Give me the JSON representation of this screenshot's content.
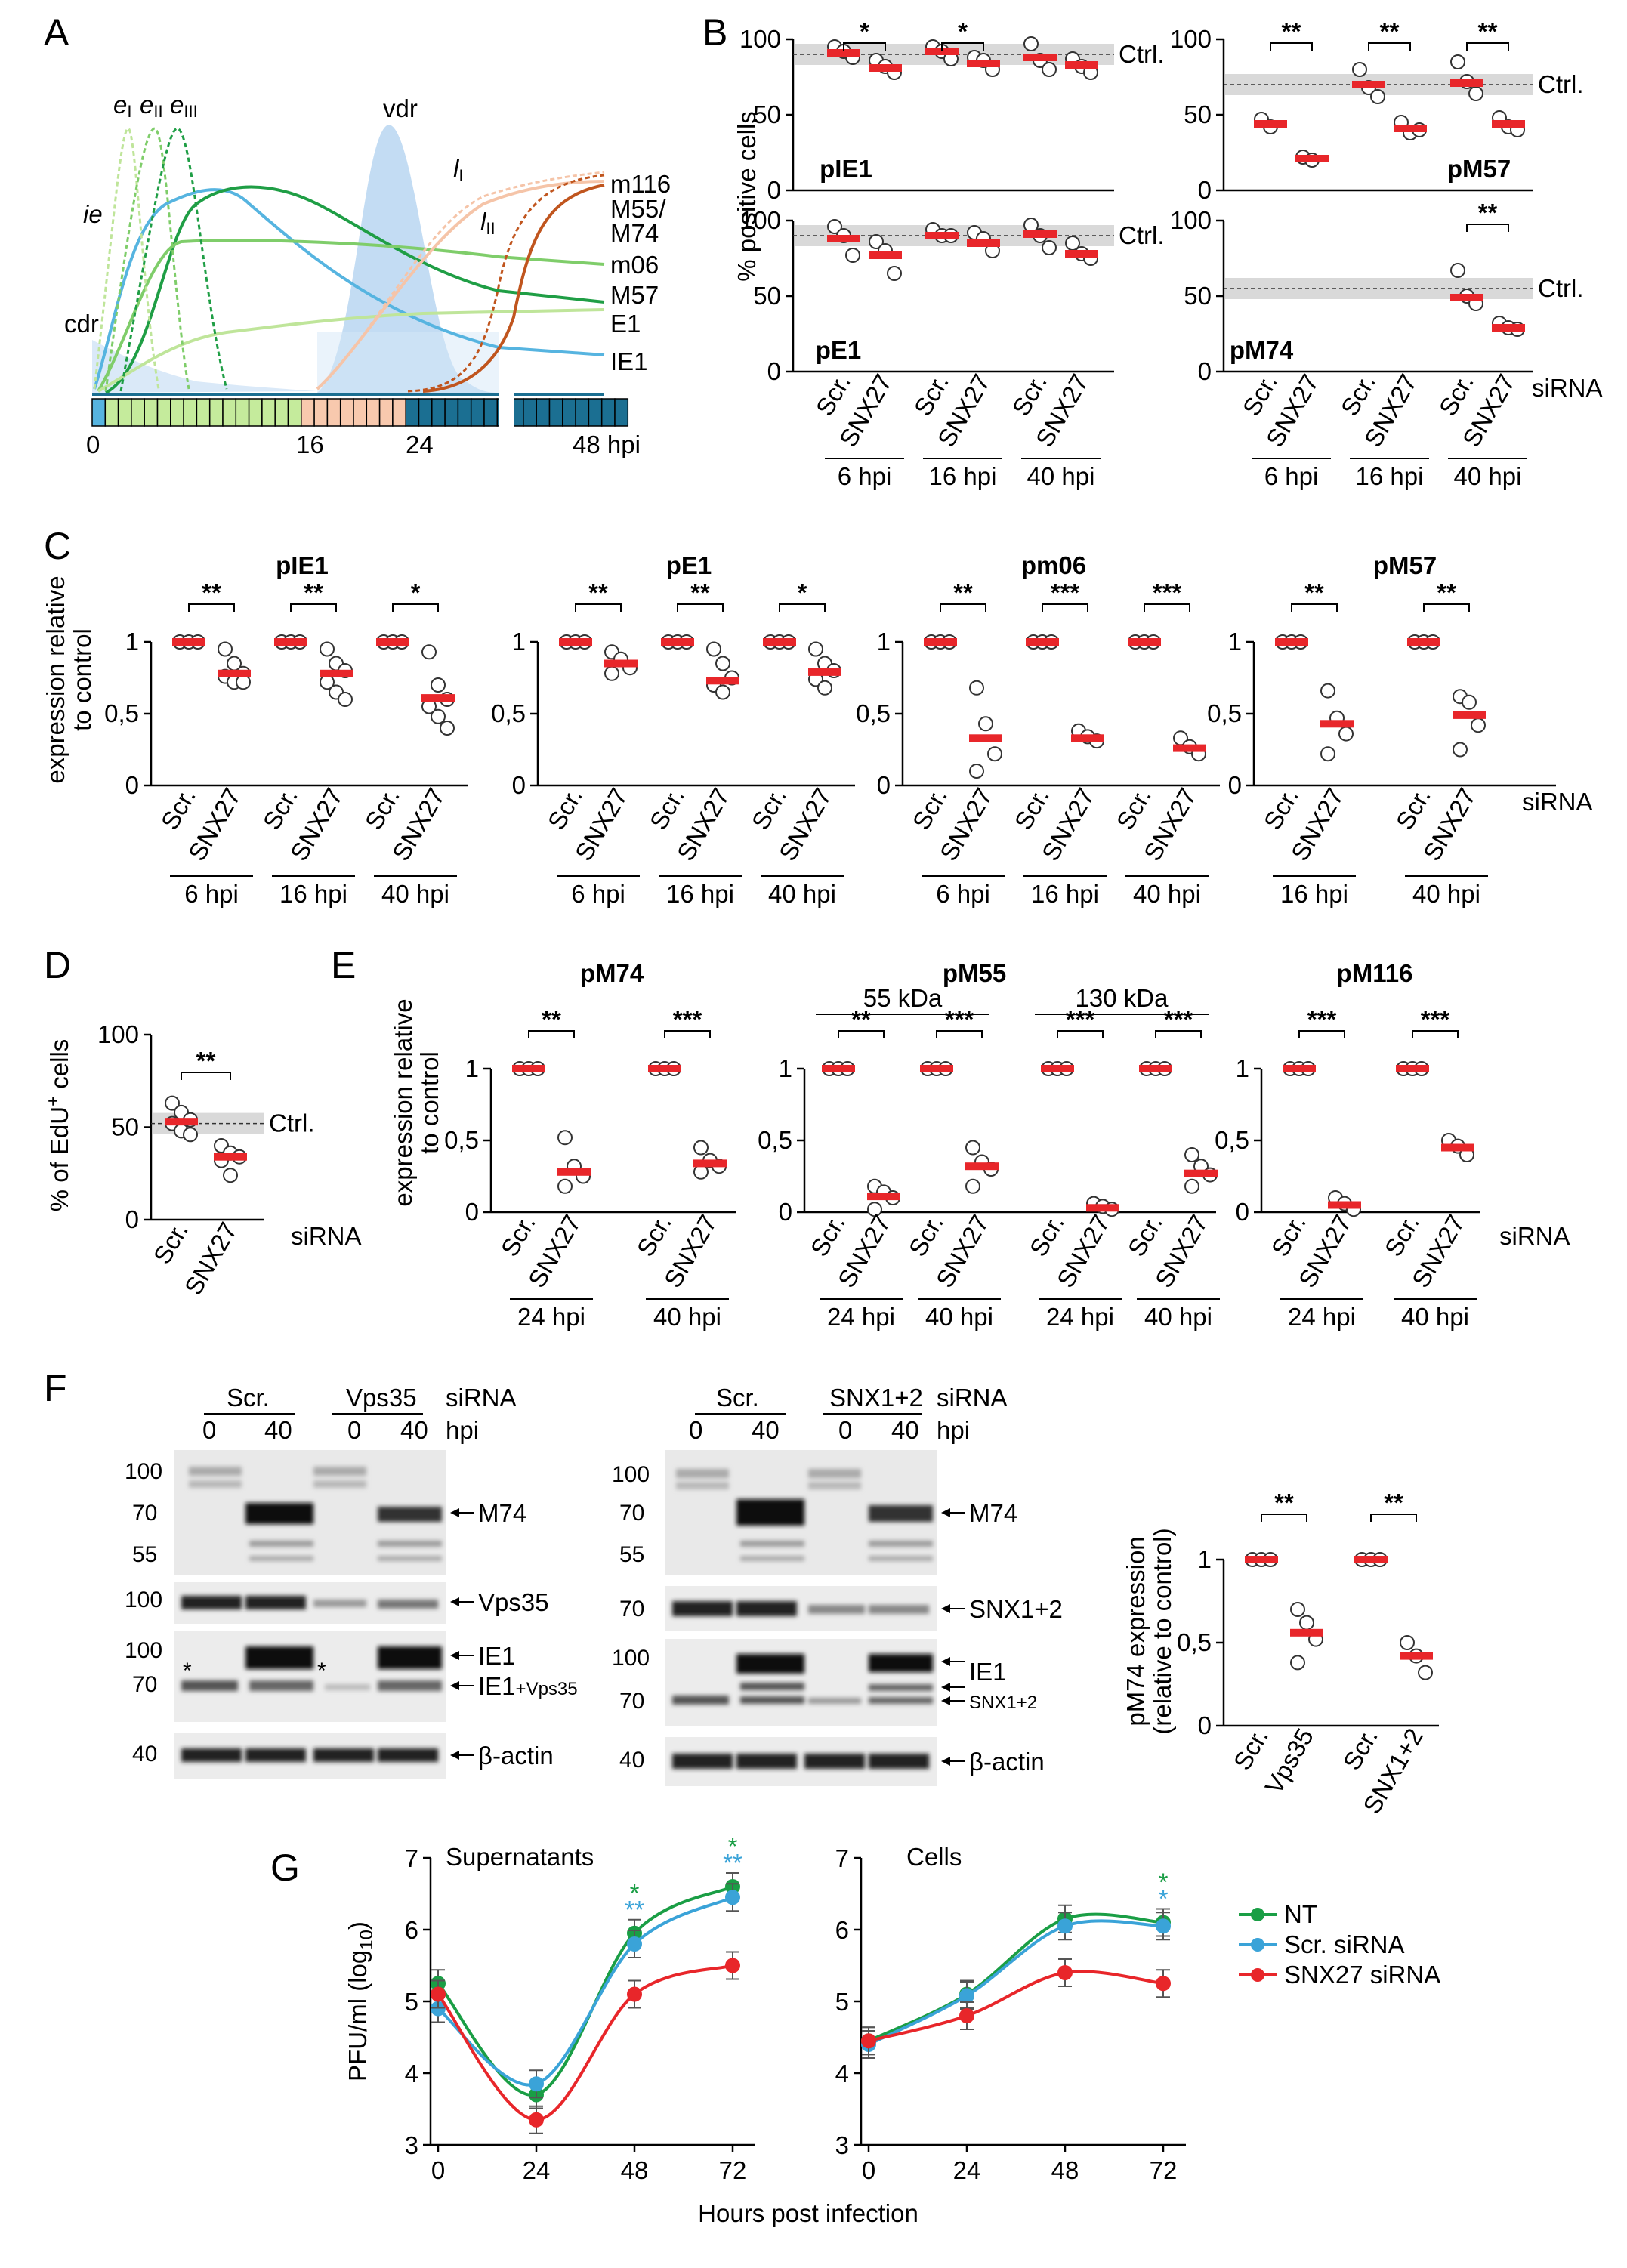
{
  "panels": {
    "A": "A",
    "B": "B",
    "C": "C",
    "D": "D",
    "E": "E",
    "F": "F",
    "G": "G"
  },
  "common": {
    "scr": "Scr.",
    "snx27": "SNX27",
    "sirna": "siRNA",
    "ctrl": "Ctrl.",
    "hpi": "hpi",
    "rel_ylabel_1": "expression relative",
    "rel_ylabel_2": "to control"
  },
  "panelA": {
    "labels": {
      "e1": "e",
      "e1s": "I",
      "e2": "e",
      "e2s": "II",
      "e3": "e",
      "e3s": "III",
      "vdr": "vdr",
      "l1": "l",
      "l1s": "I",
      "l2": "l",
      "l2s": "II",
      "ie": "ie",
      "cdr": "cdr",
      "m116": "m116",
      "m55a": "M55/",
      "m55b": "M74",
      "m06": "m06",
      "m57": "M57",
      "e1gene": "E1",
      "ie1": "IE1"
    },
    "axis": {
      "t0": "0",
      "t16": "16",
      "t24": "24",
      "t48": "48 hpi"
    },
    "colors": {
      "ie": "#56b4e0",
      "early_light": "#bfe59a",
      "early_mid": "#7fcd6a",
      "early_dark": "#1f9e45",
      "late_light": "#f5c4a8",
      "late_dark": "#c0551e",
      "shade": "#bcd8f2",
      "bar_blue": "#1b6f92",
      "bar_green": "#c5eb9c",
      "bar_peach": "#f8c9ae"
    }
  },
  "panelB": {
    "ylabel": "% positive cells",
    "ticks": [
      "0",
      "50",
      "100"
    ],
    "groups": [
      "6 hpi",
      "16 hpi",
      "40 hpi"
    ],
    "chart_data": [
      {
        "type": "scatter",
        "title": "pIE1",
        "ylim": [
          0,
          100
        ],
        "ctrl": 90,
        "groups": [
          "6 hpi",
          "16 hpi",
          "40 hpi"
        ],
        "medians": {
          "Scr.": [
            91,
            92,
            88
          ],
          "SNX27": [
            81,
            84,
            83
          ]
        },
        "points": {
          "Scr.": [
            [
              95,
              92,
              88
            ],
            [
              95,
              92,
              87
            ],
            [
              97,
              86,
              80
            ]
          ],
          "SNX27": [
            [
              86,
              82,
              78
            ],
            [
              88,
              86,
              80
            ],
            [
              87,
              82,
              78
            ]
          ]
        },
        "sig": [
          "*",
          "*",
          ""
        ]
      },
      {
        "type": "scatter",
        "title": "pM57",
        "ylim": [
          0,
          100
        ],
        "ctrl": 70,
        "groups": [
          "6 hpi",
          "16 hpi",
          "40 hpi"
        ],
        "medians": {
          "Scr.": [
            44,
            70,
            71
          ],
          "SNX27": [
            21,
            41,
            44
          ]
        },
        "points": {
          "Scr.": [
            [
              47,
              42
            ],
            [
              80,
              68,
              62
            ],
            [
              85,
              72,
              64
            ]
          ],
          "SNX27": [
            [
              22,
              20
            ],
            [
              45,
              38,
              40
            ],
            [
              48,
              42,
              40
            ]
          ]
        },
        "sig": [
          "**",
          "**",
          "**"
        ]
      },
      {
        "type": "scatter",
        "title": "pE1",
        "ylim": [
          0,
          100
        ],
        "ctrl": 90,
        "groups": [
          "6 hpi",
          "16 hpi",
          "40 hpi"
        ],
        "medians": {
          "Scr.": [
            88,
            90,
            91
          ],
          "SNX27": [
            77,
            85,
            78
          ]
        },
        "points": {
          "Scr.": [
            [
              96,
              90,
              77
            ],
            [
              94,
              90,
              90
            ],
            [
              97,
              90,
              82
            ]
          ],
          "SNX27": [
            [
              86,
              80,
              65
            ],
            [
              92,
              88,
              80
            ],
            [
              85,
              78,
              75
            ]
          ]
        },
        "sig": [
          "",
          "",
          ""
        ]
      },
      {
        "type": "scatter",
        "title": "pM74",
        "ylim": [
          0,
          100
        ],
        "ctrl": 55,
        "groups": [
          "6 hpi",
          "16 hpi",
          "40 hpi"
        ],
        "medians": {
          "Scr.": [
            null,
            null,
            49
          ],
          "SNX27": [
            null,
            null,
            29
          ]
        },
        "points": {
          "Scr.": [
            [],
            [],
            [
              67,
              50,
              45
            ]
          ],
          "SNX27": [
            [],
            [],
            [
              32,
              29,
              28
            ]
          ]
        },
        "sig": [
          "",
          "",
          "**"
        ]
      }
    ]
  },
  "panelC": {
    "ylabel_ticks": [
      "0",
      "0,5",
      "1"
    ],
    "chart_data": [
      {
        "type": "scatter",
        "title": "pIE1",
        "groups": [
          "6 hpi",
          "16 hpi",
          "40 hpi"
        ],
        "medians": {
          "Scr.": [
            1,
            1,
            1
          ],
          "SNX27": [
            0.78,
            0.78,
            0.61
          ]
        },
        "points": {
          "SNX27": [
            [
              0.95,
              0.85,
              0.78,
              0.76,
              0.72,
              0.72
            ],
            [
              0.95,
              0.85,
              0.8,
              0.72,
              0.65,
              0.6
            ],
            [
              0.93,
              0.7,
              0.6,
              0.55,
              0.48,
              0.4
            ]
          ]
        },
        "sig": [
          "**",
          "**",
          "*"
        ]
      },
      {
        "type": "scatter",
        "title": "pE1",
        "groups": [
          "6 hpi",
          "16 hpi",
          "40 hpi"
        ],
        "medians": {
          "Scr.": [
            1,
            1,
            1
          ],
          "SNX27": [
            0.85,
            0.73,
            0.79
          ]
        },
        "points": {
          "SNX27": [
            [
              0.93,
              0.88,
              0.82,
              0.78
            ],
            [
              0.95,
              0.85,
              0.75,
              0.7,
              0.65
            ],
            [
              0.95,
              0.85,
              0.8,
              0.74,
              0.68
            ]
          ]
        },
        "sig": [
          "**",
          "**",
          "*"
        ]
      },
      {
        "type": "scatter",
        "title": "pm06",
        "groups": [
          "6 hpi",
          "16 hpi",
          "40 hpi"
        ],
        "medians": {
          "Scr.": [
            1,
            1,
            1
          ],
          "SNX27": [
            0.33,
            0.33,
            0.26
          ]
        },
        "points": {
          "SNX27": [
            [
              0.68,
              0.43,
              0.22,
              0.1
            ],
            [
              0.38,
              0.34,
              0.31
            ],
            [
              0.33,
              0.27,
              0.22
            ]
          ]
        },
        "sig": [
          "**",
          "***",
          "***"
        ]
      },
      {
        "type": "scatter",
        "title": "pM57",
        "groups": [
          "16 hpi",
          "40 hpi"
        ],
        "medians": {
          "Scr.": [
            1,
            1
          ],
          "SNX27": [
            0.43,
            0.49
          ]
        },
        "points": {
          "SNX27": [
            [
              0.66,
              0.47,
              0.36,
              0.22
            ],
            [
              0.62,
              0.58,
              0.42,
              0.25
            ]
          ]
        },
        "sig": [
          "**",
          "**"
        ]
      }
    ]
  },
  "panelD": {
    "ylabel": "% of EdU",
    "ylabel_sup": "+",
    "ylabel_end": " cells",
    "ticks": [
      "0",
      "50",
      "100"
    ],
    "chart_data": {
      "type": "scatter",
      "ylim": [
        0,
        100
      ],
      "ctrl": 52,
      "medians": {
        "Scr.": 53,
        "SNX27": 34
      },
      "points": {
        "Scr.": [
          63,
          58,
          54,
          52,
          48,
          46
        ],
        "SNX27": [
          40,
          36,
          34,
          32,
          24
        ]
      },
      "sig": "**"
    }
  },
  "panelE": {
    "kda55": "55 kDa",
    "kda130": "130 kDa",
    "chart_data": [
      {
        "type": "scatter",
        "title": "pM74",
        "groups": [
          "24 hpi",
          "40 hpi"
        ],
        "medians": {
          "SNX27": [
            0.28,
            0.34
          ]
        },
        "points": {
          "SNX27": [
            [
              0.52,
              0.32,
              0.25,
              0.18
            ],
            [
              0.45,
              0.36,
              0.32,
              0.28
            ]
          ]
        },
        "sig": [
          "**",
          "***"
        ]
      },
      {
        "type": "scatter",
        "title": "pM55",
        "groups": [
          "24 hpi",
          "40 hpi",
          "24 hpi",
          "40 hpi"
        ],
        "medians": {
          "SNX27": [
            0.11,
            0.32,
            0.03,
            0.27
          ]
        },
        "points": {
          "SNX27": [
            [
              0.18,
              0.14,
              0.1,
              0.02
            ],
            [
              0.45,
              0.35,
              0.3,
              0.18
            ],
            [
              0.06,
              0.04,
              0.02
            ],
            [
              0.4,
              0.32,
              0.26,
              0.18
            ]
          ]
        },
        "sig": [
          "**",
          "***",
          "***",
          "***"
        ]
      },
      {
        "type": "scatter",
        "title": "pM116",
        "groups": [
          "24 hpi",
          "40 hpi"
        ],
        "medians": {
          "SNX27": [
            0.05,
            0.45
          ]
        },
        "points": {
          "SNX27": [
            [
              0.1,
              0.06,
              0.02
            ],
            [
              0.5,
              0.46,
              0.4
            ]
          ]
        },
        "sig": [
          "***",
          "***"
        ]
      }
    ]
  },
  "panelF": {
    "blot1": {
      "scr": "Scr.",
      "kd": "Vps35",
      "lanes": [
        "0",
        "40",
        "0",
        "40"
      ],
      "mw1": [
        "100",
        "70",
        "55"
      ],
      "mw2": [
        "100"
      ],
      "mw3": [
        "100",
        "70"
      ],
      "mw4": [
        "40"
      ],
      "labels": [
        "M74",
        "Vps35",
        "IE1",
        "IE1",
        "+Vps35",
        "β-actin"
      ],
      "star": "*"
    },
    "blot2": {
      "scr": "Scr.",
      "kd": "SNX1+2",
      "lanes": [
        "0",
        "40",
        "0",
        "40"
      ],
      "mw1": [
        "100",
        "70",
        "55"
      ],
      "mw2": [
        "70"
      ],
      "mw3": [
        "100",
        "70"
      ],
      "mw4": [
        "40"
      ],
      "labels": [
        "M74",
        "SNX1+2",
        "IE1",
        "SNX1+2",
        "β-actin"
      ]
    },
    "chart": {
      "ylabel_1": "pM74 expression",
      "ylabel_2": "(relative to control)",
      "ticks": [
        "0",
        "0,5",
        "1"
      ],
      "xlabels": [
        "Scr.",
        "Vps35",
        "Scr.",
        "SNX1+2"
      ]
    },
    "chart_data": {
      "type": "scatter",
      "groups": [
        "Vps35",
        "SNX1+2"
      ],
      "medians": {
        "Scr.": [
          1,
          1
        ],
        "kd": [
          0.56,
          0.42
        ]
      },
      "points": {
        "kd": [
          [
            0.7,
            0.62,
            0.52,
            0.38
          ],
          [
            0.5,
            0.42,
            0.32
          ]
        ]
      },
      "sig": [
        "**",
        "**"
      ]
    }
  },
  "panelG": {
    "ylabel": "PFU/ml (log",
    "ylabel_sub": "10",
    "ylabel_end": ")",
    "xlabel": "Hours post infection",
    "yticks": [
      "3",
      "4",
      "5",
      "6",
      "7"
    ],
    "xticks": [
      "0",
      "24",
      "48",
      "72"
    ],
    "legend": [
      "NT",
      "Scr. siRNA",
      "SNX27 siRNA"
    ],
    "colors": [
      "#1a9e45",
      "#3aa3d8",
      "#e8262a"
    ],
    "chart_data": [
      {
        "type": "line",
        "title": "Supernatants",
        "x": [
          0,
          24,
          48,
          72
        ],
        "ylim": [
          3,
          7
        ],
        "series": [
          {
            "name": "NT",
            "values": [
              5.25,
              3.7,
              5.95,
              6.6
            ]
          },
          {
            "name": "Scr. siRNA",
            "values": [
              4.9,
              3.85,
              5.8,
              6.45
            ]
          },
          {
            "name": "SNX27 siRNA",
            "values": [
              5.1,
              3.35,
              5.1,
              5.5
            ]
          }
        ],
        "sig_48": [
          "*",
          "**"
        ],
        "sig_72": [
          "*",
          "**"
        ]
      },
      {
        "type": "line",
        "title": "Cells",
        "x": [
          0,
          24,
          48,
          72
        ],
        "ylim": [
          3,
          7
        ],
        "series": [
          {
            "name": "NT",
            "values": [
              4.45,
              5.1,
              6.15,
              6.1
            ]
          },
          {
            "name": "Scr. siRNA",
            "values": [
              4.4,
              5.08,
              6.05,
              6.05
            ]
          },
          {
            "name": "SNX27 siRNA",
            "values": [
              4.45,
              4.8,
              5.4,
              5.25
            ]
          }
        ],
        "sig_72": [
          "*",
          "*"
        ]
      }
    ]
  }
}
